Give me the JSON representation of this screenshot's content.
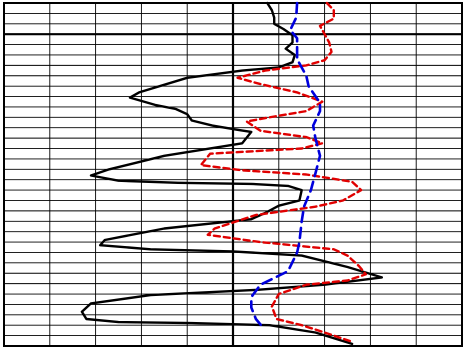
{
  "chart_data": {
    "type": "line",
    "title": "",
    "xlabel": "",
    "ylabel": "",
    "grid": true,
    "xlim": [
      0,
      10
    ],
    "ylim": [
      0,
      33
    ],
    "x_gridlines": 10,
    "y_gridlines": 33,
    "major_x": [
      5
    ],
    "major_y": [
      30
    ],
    "series": [
      {
        "color": "#000000",
        "dash": "solid",
        "width": 2.4,
        "points": [
          [
            5.75,
            33.0
          ],
          [
            5.85,
            32.3
          ],
          [
            5.9,
            31.6
          ],
          [
            5.9,
            31.0
          ],
          [
            6.1,
            30.5
          ],
          [
            6.3,
            29.9
          ],
          [
            6.3,
            29.2
          ],
          [
            6.15,
            28.6
          ],
          [
            6.35,
            28.0
          ],
          [
            6.3,
            27.3
          ],
          [
            6.0,
            26.8
          ],
          [
            5.2,
            26.5
          ],
          [
            4.0,
            25.8
          ],
          [
            2.95,
            24.4
          ],
          [
            2.75,
            23.9
          ],
          [
            3.3,
            23.2
          ],
          [
            3.75,
            22.8
          ],
          [
            4.0,
            22.3
          ],
          [
            4.1,
            21.7
          ],
          [
            4.55,
            21.2
          ],
          [
            5.1,
            20.8
          ],
          [
            5.4,
            20.6
          ],
          [
            5.2,
            19.5
          ],
          [
            3.5,
            18.3
          ],
          [
            2.3,
            17.0
          ],
          [
            1.9,
            16.4
          ],
          [
            2.5,
            15.9
          ],
          [
            3.8,
            15.7
          ],
          [
            5.4,
            15.6
          ],
          [
            6.2,
            15.4
          ],
          [
            6.5,
            15.0
          ],
          [
            6.45,
            14.0
          ],
          [
            6.0,
            13.5
          ],
          [
            5.7,
            12.8
          ],
          [
            5.4,
            12.2
          ],
          [
            3.5,
            11.3
          ],
          [
            2.2,
            10.2
          ],
          [
            2.1,
            9.7
          ],
          [
            3.2,
            9.3
          ],
          [
            5.0,
            9.1
          ],
          [
            6.5,
            8.7
          ],
          [
            7.5,
            7.6
          ],
          [
            8.25,
            6.6
          ],
          [
            7.0,
            5.9
          ],
          [
            5.5,
            5.4
          ],
          [
            3.2,
            4.9
          ],
          [
            1.9,
            4.1
          ],
          [
            1.7,
            3.3
          ],
          [
            1.8,
            2.6
          ],
          [
            2.5,
            2.3
          ],
          [
            4.1,
            2.2
          ],
          [
            5.8,
            2.0
          ],
          [
            6.8,
            1.3
          ],
          [
            7.6,
            0.2
          ]
        ]
      },
      {
        "color": "#e00000",
        "dash": "6,4",
        "width": 2.4,
        "points": [
          [
            7.05,
            33.0
          ],
          [
            7.2,
            32.3
          ],
          [
            7.2,
            31.5
          ],
          [
            6.9,
            30.8
          ],
          [
            7.0,
            30.0
          ],
          [
            7.1,
            29.2
          ],
          [
            7.15,
            28.3
          ],
          [
            7.0,
            27.5
          ],
          [
            6.6,
            27.0
          ],
          [
            5.7,
            26.5
          ],
          [
            5.1,
            25.8
          ],
          [
            5.6,
            25.2
          ],
          [
            6.4,
            24.4
          ],
          [
            6.95,
            23.5
          ],
          [
            6.6,
            22.6
          ],
          [
            5.8,
            22.0
          ],
          [
            5.3,
            21.6
          ],
          [
            5.6,
            20.7
          ],
          [
            6.6,
            20.1
          ],
          [
            6.95,
            19.5
          ],
          [
            6.5,
            19.0
          ],
          [
            4.5,
            18.5
          ],
          [
            4.3,
            17.4
          ],
          [
            5.2,
            16.9
          ],
          [
            6.6,
            16.5
          ],
          [
            7.6,
            15.8
          ],
          [
            7.8,
            15.0
          ],
          [
            7.4,
            14.0
          ],
          [
            6.8,
            13.4
          ],
          [
            5.5,
            12.6
          ],
          [
            4.6,
            11.3
          ],
          [
            4.45,
            10.7
          ],
          [
            5.6,
            10.0
          ],
          [
            7.2,
            9.3
          ],
          [
            7.5,
            8.7
          ],
          [
            7.75,
            7.7
          ],
          [
            7.9,
            6.9
          ],
          [
            7.5,
            6.3
          ],
          [
            6.6,
            5.9
          ],
          [
            6.0,
            5.0
          ],
          [
            5.85,
            3.8
          ],
          [
            5.95,
            2.6
          ],
          [
            6.5,
            2.0
          ],
          [
            7.0,
            1.3
          ],
          [
            7.6,
            0.4
          ]
        ]
      },
      {
        "color": "#0000dd",
        "dash": "10,6",
        "width": 2.6,
        "points": [
          [
            6.4,
            33.0
          ],
          [
            6.38,
            31.6
          ],
          [
            6.25,
            30.4
          ],
          [
            6.4,
            29.6
          ],
          [
            6.4,
            28.6
          ],
          [
            6.4,
            27.6
          ],
          [
            6.6,
            26.0
          ],
          [
            6.65,
            25.0
          ],
          [
            6.9,
            23.4
          ],
          [
            6.9,
            22.6
          ],
          [
            6.75,
            21.2
          ],
          [
            6.8,
            20.0
          ],
          [
            6.9,
            18.3
          ],
          [
            6.8,
            16.6
          ],
          [
            6.7,
            15.0
          ],
          [
            6.55,
            13.4
          ],
          [
            6.5,
            12.0
          ],
          [
            6.45,
            10.0
          ],
          [
            6.4,
            9.0
          ],
          [
            6.2,
            7.2
          ],
          [
            5.6,
            5.9
          ],
          [
            5.4,
            4.7
          ],
          [
            5.4,
            3.7
          ],
          [
            5.5,
            2.6
          ],
          [
            5.65,
            1.8
          ]
        ]
      }
    ]
  }
}
